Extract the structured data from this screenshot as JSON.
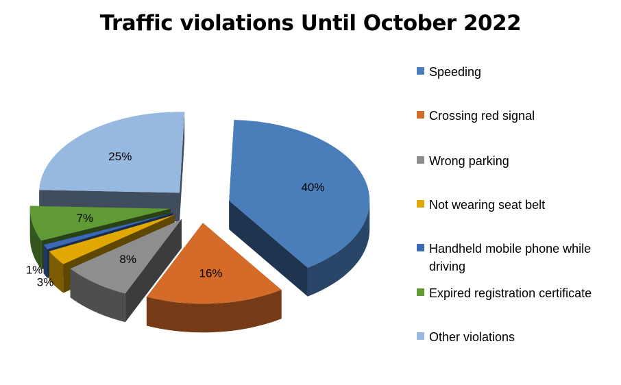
{
  "chart_data": {
    "type": "pie",
    "style": "3d-exploded",
    "title": "Traffic violations Until October 2022",
    "legend_position": "right",
    "slices": [
      {
        "label": "Speeding",
        "value": 40,
        "display": "40%",
        "color": "#4a7ebb"
      },
      {
        "label": "Crossing red signal",
        "value": 16,
        "display": "16%",
        "color": "#d46b29"
      },
      {
        "label": "Wrong parking",
        "value": 8,
        "display": "8%",
        "color": "#8e8e8e"
      },
      {
        "label": "Not wearing seat belt",
        "value": 3,
        "display": "3%",
        "color": "#e0a800"
      },
      {
        "label": "Handheld mobile phone while driving",
        "value": 1,
        "display": "1%",
        "color": "#3a68b5"
      },
      {
        "label": "Expired registration certificate",
        "value": 7,
        "display": "7%",
        "color": "#5f9a35"
      },
      {
        "label": "Other violations",
        "value": 25,
        "display": "25%",
        "color": "#97b8df"
      }
    ]
  }
}
